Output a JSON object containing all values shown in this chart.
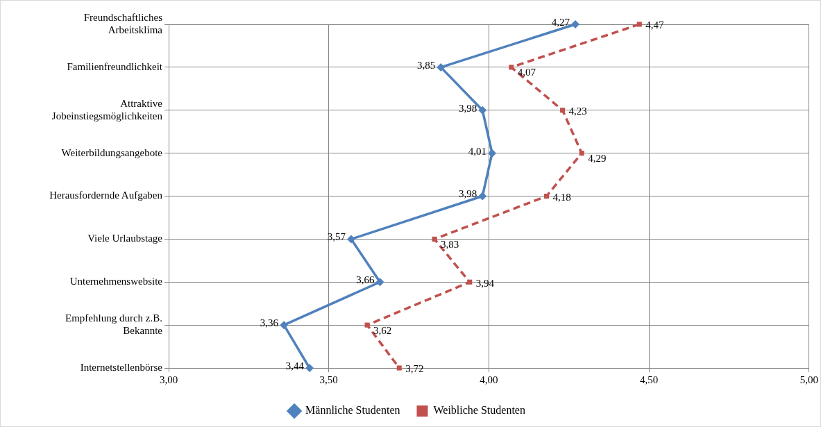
{
  "chart_data": {
    "type": "line",
    "orientation": "horizontal",
    "categories": [
      "Freundschaftliches Arbeitsklima",
      "Familienfreundlichkeit",
      "Attraktive Jobeinstiegsmöglichkeiten",
      "Weiterbildungsangebote",
      "Herausfordernde Aufgaben",
      "Viele Urlaubstage",
      "Unternehmenswebsite",
      "Empfehlung durch z.B. Bekannte",
      "Internetstellenbörse"
    ],
    "series": [
      {
        "name": "Männliche Studenten",
        "color": "#4f81bd",
        "marker": "diamond",
        "line_style": "solid",
        "values": [
          4.27,
          3.85,
          3.98,
          4.01,
          3.98,
          3.57,
          3.66,
          3.36,
          3.44
        ],
        "value_labels": [
          "4,27",
          "3,85",
          "3,98",
          "4,01",
          "3,98",
          "3,57",
          "3,66",
          "3,36",
          "3,44"
        ]
      },
      {
        "name": "Weibliche Studenten",
        "color": "#c0504d",
        "marker": "square",
        "line_style": "dashed",
        "values": [
          4.47,
          4.07,
          4.23,
          4.29,
          4.18,
          3.83,
          3.94,
          3.62,
          3.72
        ],
        "value_labels": [
          "4,47",
          "4,07",
          "4,23",
          "4,29",
          "4,18",
          "3,83",
          "3,94",
          "3,62",
          "3,72"
        ]
      }
    ],
    "xlim": [
      3,
      5
    ],
    "xticks": [
      {
        "value": 3,
        "label": "3,00"
      },
      {
        "value": 3.5,
        "label": "3,50"
      },
      {
        "value": 4,
        "label": "4,00"
      },
      {
        "value": 4.5,
        "label": "4,50"
      },
      {
        "value": 5,
        "label": "5,00"
      }
    ],
    "grid": true,
    "legend": "bottom"
  }
}
